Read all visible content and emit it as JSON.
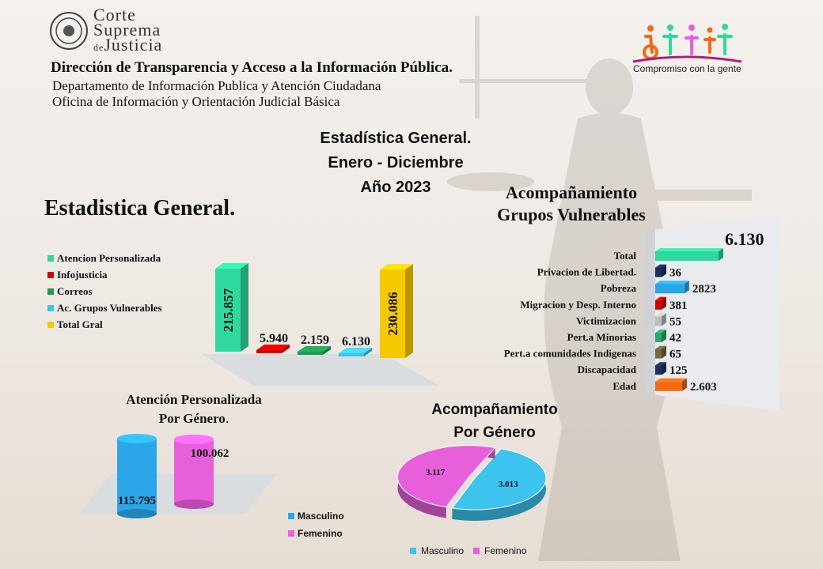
{
  "header": {
    "institution_line1": "Corte",
    "institution_line2": "Suprema",
    "institution_line3": "de",
    "institution_line4": "Justicia",
    "direction": "Dirección de Transparencia y Acceso a la Información Pública.",
    "department": "Departamento  de Información Publica y Atención Ciudadana",
    "office": "Oficina de Información  y Orientación Judicial Básica",
    "logo_caption": "Compromiso con la gente"
  },
  "main_title": {
    "line1": "Estadística General.",
    "line2": "Enero - Diciembre",
    "line3": "Año 2023"
  },
  "colors": {
    "green": "#2fd89c",
    "red": "#d40000",
    "dark_green": "#1f9a52",
    "cyan": "#3cc4ee",
    "yellow": "#f6c800",
    "navy": "#1c2f5a",
    "blue": "#2aa6e8",
    "gray": "#b9bec2",
    "olive": "#6f6a3e",
    "orange": "#f26a12",
    "magenta": "#e85fdc"
  },
  "chart_data": [
    {
      "id": "general",
      "type": "bar",
      "title": "Estadistica General.",
      "categories": [
        "Atencion Personalizada",
        "Infojusticia",
        "Correos",
        "Ac. Grupos Vulnerables",
        "Total Gral"
      ],
      "values": [
        215857,
        5940,
        2159,
        6130,
        230086
      ],
      "labels": [
        "215.857",
        "5.940",
        "2.159",
        "6.130",
        "230.086"
      ],
      "colors": [
        "#2fd89c",
        "#d40000",
        "#1f9a52",
        "#3cc4ee",
        "#f6c800"
      ],
      "legend": "left",
      "grid": false
    },
    {
      "id": "vulnerables",
      "type": "bar",
      "orientation": "horizontal",
      "title_line1": "Acompañamiento",
      "title_line2": "Grupos Vulnerables",
      "categories": [
        "Total",
        "Privacion de Libertad.",
        "Pobreza",
        "Migracion y Desp. Interno",
        "Victimizacion",
        "Pert.a Minorias",
        "Pert.a comunidades Indigenas",
        "Discapacidad",
        "Edad"
      ],
      "values": [
        6130,
        36,
        2823,
        381,
        55,
        42,
        65,
        125,
        2603
      ],
      "labels": [
        "6.130",
        "36",
        "2823",
        "381",
        "55",
        "42",
        "65",
        "125",
        "2.603"
      ],
      "colors": [
        "#2fd89c",
        "#1c2f5a",
        "#2aa6e8",
        "#d40000",
        "#b9bec2",
        "#2ea86a",
        "#6f6a3e",
        "#1c2f5a",
        "#f26a12"
      ],
      "grid": false
    },
    {
      "id": "atencion_genero",
      "type": "bar",
      "title_line1": "Atención Personalizada",
      "title_line2": "Por Género",
      "categories": [
        "Masculino",
        "Femenino"
      ],
      "values": [
        115795,
        100062
      ],
      "labels": [
        "115.795",
        "100.062"
      ],
      "colors": [
        "#2aa6e8",
        "#e85fdc"
      ],
      "legend": [
        "Masculino",
        "Femenino"
      ],
      "legend_position": "bottom-right"
    },
    {
      "id": "acomp_genero",
      "type": "pie",
      "title_line1": "Acompañamiento",
      "title_line2": "Por Género",
      "categories": [
        "Masculino",
        "Femenino"
      ],
      "values": [
        3013,
        3117
      ],
      "labels": [
        "3.013",
        "3.117"
      ],
      "colors": [
        "#3cc4ee",
        "#e85fdc"
      ],
      "legend_position": "bottom"
    }
  ]
}
